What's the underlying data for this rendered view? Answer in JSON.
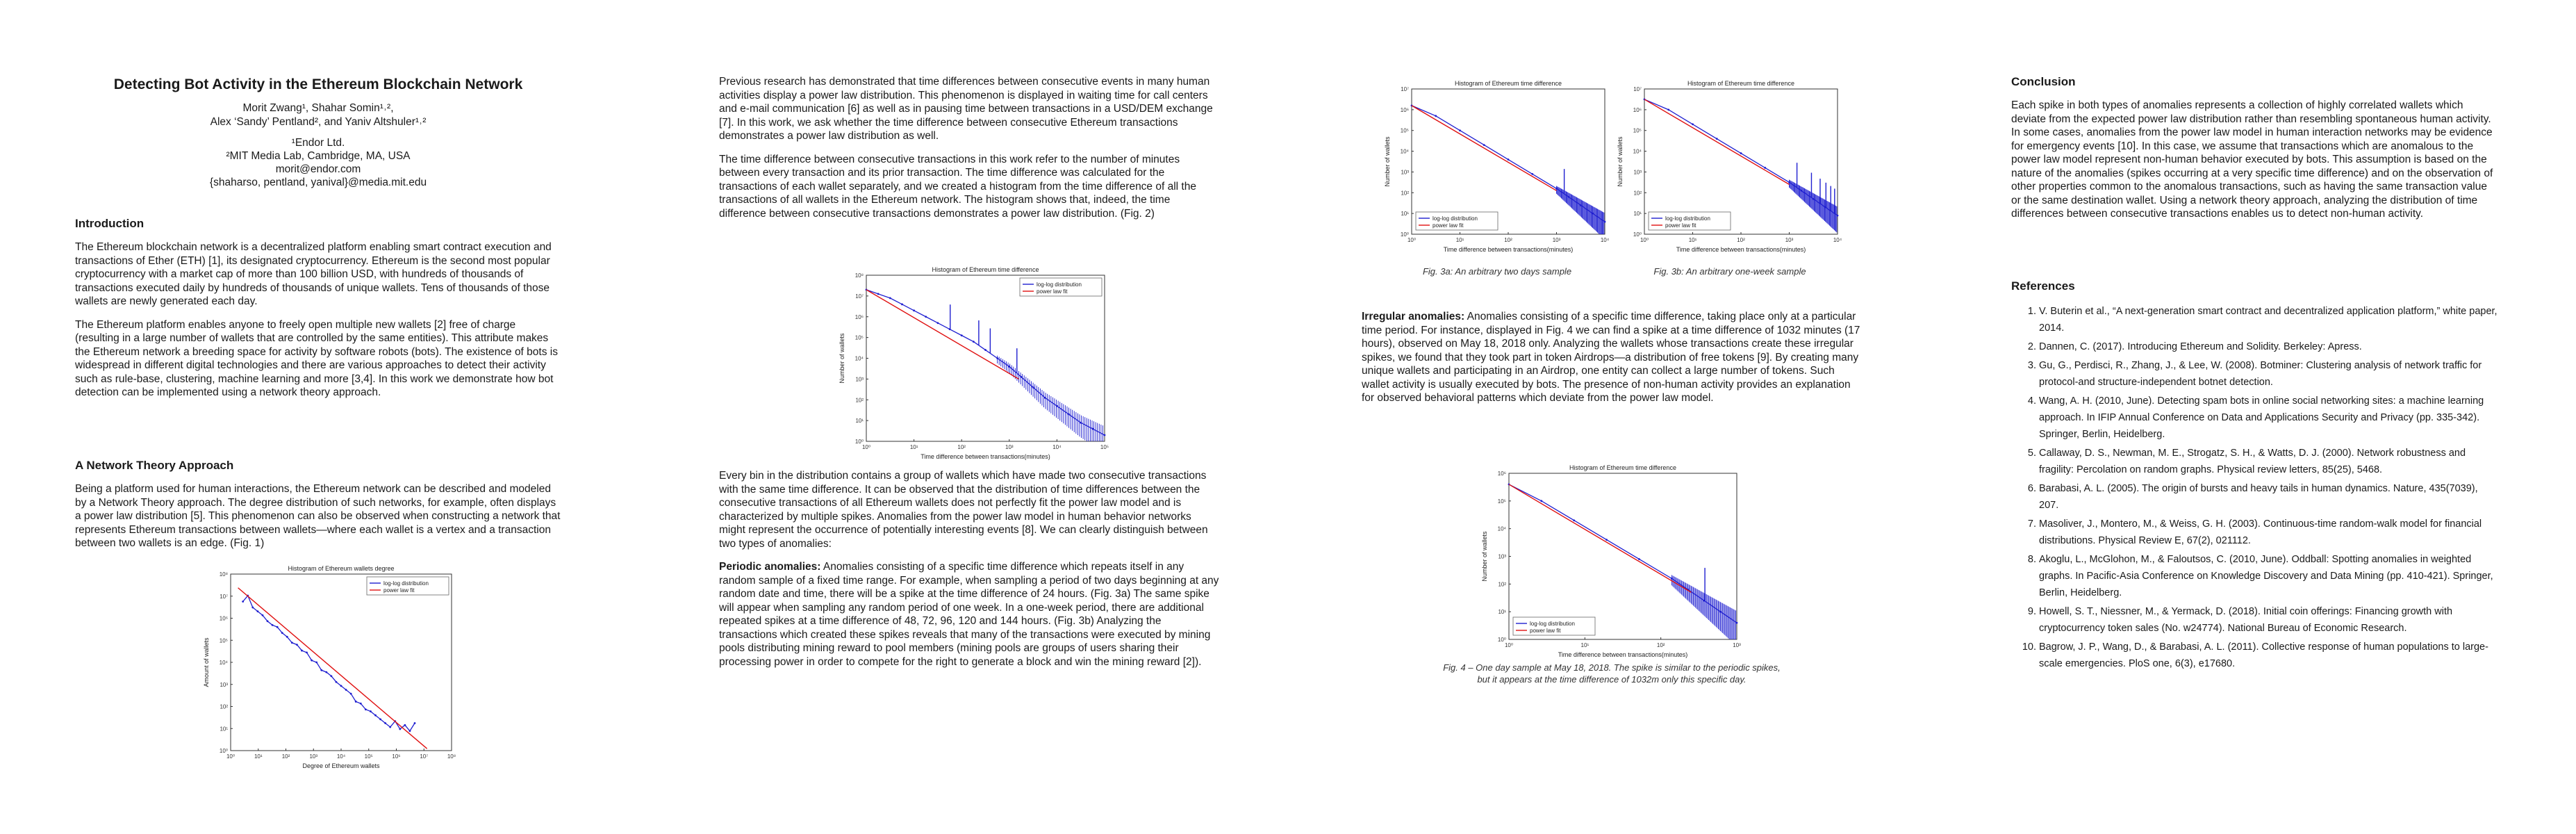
{
  "paper": {
    "title": "Detecting Bot Activity in the Ethereum Blockchain Network",
    "authors_line1": "Morit Zwang¹, Shahar Somin¹˒²,",
    "authors_line2": "Alex ‘Sandy’ Pentland², and Yaniv Altshuler¹˒²",
    "affil1": "¹Endor Ltd.",
    "affil2": "²MIT Media Lab, Cambridge, MA, USA",
    "email1": "morit@endor.com",
    "email2": "{shaharso, pentland, yanival}@media.mit.edu"
  },
  "sections": {
    "intro_heading": "Introduction",
    "intro_p1": "The Ethereum blockchain network is a decentralized platform enabling smart contract execution and transactions of Ether (ETH) [1], its designated cryptocurrency. Ethereum is the second most popular cryptocurrency with a market cap of more than 100 billion USD, with hundreds of thousands of transactions executed daily by hundreds of thousands of unique wallets. Tens of thousands of those wallets are newly generated each day.",
    "intro_p2": "The Ethereum platform enables anyone to freely open multiple new wallets [2] free of charge (resulting in a large number of wallets that are controlled by the same entities). This attribute makes the Ethereum network a breeding space for activity by software robots (bots). The existence of bots is widespread in different digital technologies and there are various approaches to detect their activity such as rule-base, clustering, machine learning and more [3,4]. In this work we demonstrate how bot detection can be implemented using a network theory approach.",
    "network_heading": "A Network Theory Approach",
    "network_p1": "Being a platform used for human interactions, the Ethereum network can be described and modeled by a Network Theory approach. The degree distribution of such networks, for example, often displays a power law distribution [5]. This phenomenon can also be observed when constructing a network that represents Ethereum transactions between wallets—where each wallet is a vertex and a transaction between two wallets is an edge. (Fig. 1)",
    "col2_p1": "Previous research has demonstrated that time differences between consecutive events in many human activities display a power law distribution. This phenomenon is displayed in waiting time for call centers and e-mail communication [6] as well as in pausing time between transactions in a USD/DEM exchange [7]. In this work, we ask whether the time difference between consecutive Ethereum transactions demonstrates a power law distribution as well.",
    "col2_p2": "The time difference between consecutive transactions in this work refer to the number of minutes between every transaction and its prior transaction. The time difference was calculated for the transactions of each wallet separately, and we created a histogram from the time difference of all the transactions of all wallets in the Ethereum network. The histogram shows that, indeed, the time difference between consecutive transactions demonstrates a power law distribution. (Fig. 2)",
    "col2_p3": "Every bin in the distribution contains a group of wallets which have made two consecutive transactions with the same time difference. It can be observed that the distribution of time differences between the consecutive transactions of all Ethereum wallets does not perfectly fit the power law model and is characterized by multiple spikes. Anomalies from the power law model in human behavior networks might represent the occurrence of potentially interesting events [8]. We can clearly distinguish between two types of anomalies:",
    "periodic_label": "Periodic anomalies:",
    "periodic_text": " Anomalies consisting of a specific time difference which repeats itself in any random sample of a fixed time range. For example, when sampling a period of two days beginning at any random date and time, there will be a spike at the time difference of 24 hours. (Fig. 3a) The same spike will appear when sampling any random period of one week. In a one-week period, there are additional repeated spikes at a time difference of 48, 72, 96, 120 and 144 hours. (Fig. 3b) Analyzing the transactions which created these spikes reveals that many of the transactions were executed by mining pools distributing mining reward to pool members (mining pools are groups of users sharing their processing power in order to compete for the right to generate a block and win the mining reward [2]).",
    "irregular_label": "Irregular anomalies:",
    "irregular_text": " Anomalies consisting of a specific time difference, taking place only at a particular time period. For instance, displayed in Fig. 4 we can find a spike at a time difference of 1032 minutes (17 hours), observed on May 18, 2018 only. Analyzing the wallets whose transactions create these irregular spikes, we found that they took part in token Airdrops—a distribution of free tokens [9]. By creating many unique wallets and participating in an Airdrop, one entity can collect a large number of tokens. Such wallet activity is usually executed by bots. The presence of non-human activity provides an explanation for observed behavioral patterns which deviate from the power law model.",
    "conclusion_heading": "Conclusion",
    "conclusion_p": "Each spike in both types of anomalies represents a collection of highly correlated wallets which deviate from the expected power law distribution rather than resembling spontaneous human activity. In some cases, anomalies from the power law model in human interaction networks may be evidence for emergency events [10]. In this case, we assume that transactions which are anomalous to the power law model represent non-human behavior executed by bots. This assumption is based on the nature of the anomalies (spikes occurring at a very specific time difference) and on the observation of other properties common to the anomalous transactions, such as having the same transaction value or the same destination wallet. Using a network theory approach, analyzing the distribution of time differences between consecutive transactions enables us to detect non-human activity.",
    "references_heading": "References"
  },
  "captions": {
    "fig3a": "Fig. 3a: An arbitrary two days sample",
    "fig3b": "Fig. 3b: An arbitrary one-week sample",
    "fig4_line1": "Fig. 4 – One day sample at May 18, 2018. The spike is similar to the periodic spikes,",
    "fig4_line2": "but it appears at the time difference of 1032m only this specific day."
  },
  "references": [
    "V. Buterin et al., “A next-generation smart contract and decentralized application platform,” white paper, 2014.",
    "Dannen, C. (2017). Introducing Ethereum and Solidity. Berkeley: Apress.",
    "Gu, G., Perdisci, R., Zhang, J., & Lee, W. (2008). Botminer: Clustering analysis of network traffic for protocol-and structure-independent botnet detection.",
    "Wang, A. H. (2010, June). Detecting spam bots in online social networking sites: a machine learning approach. In IFIP Annual Conference on Data and Applications Security and Privacy (pp. 335-342). Springer, Berlin, Heidelberg.",
    "Callaway, D. S., Newman, M. E., Strogatz, S. H., & Watts, D. J. (2000). Network robustness and fragility: Percolation on random graphs. Physical review letters, 85(25), 5468.",
    "Barabasi, A. L. (2005). The origin of bursts and heavy tails in human dynamics. Nature, 435(7039), 207.",
    "Masoliver, J., Montero, M., & Weiss, G. H. (2003). Continuous-time random-walk model for financial distributions. Physical Review E, 67(2), 021112.",
    "Akoglu, L., McGlohon, M., & Faloutsos, C. (2010, June). Oddball: Spotting anomalies in weighted graphs. In Pacific-Asia Conference on Knowledge Discovery and Data Mining (pp. 410-421). Springer, Berlin, Heidelberg.",
    "Howell, S. T., Niessner, M., & Yermack, D. (2018). Initial coin offerings: Financing growth with cryptocurrency token sales (No. w24774). National Bureau of Economic Research.",
    "Bagrow, J. P., Wang, D., & Barabasi, A. L. (2011). Collective response of human populations to large-scale emergencies. PloS one, 6(3), e17680."
  ],
  "chart_data": [
    {
      "id": "fig1",
      "type": "scatter",
      "title": "Histogram of Ethereum wallets degree",
      "xlabel": "Degree of Ethereum wallets",
      "ylabel": "Amount of wallets",
      "log_x": true,
      "log_y": true,
      "xlim": [
        0,
        9
      ],
      "ylim": [
        0,
        9
      ],
      "xticks": [
        "10⁰",
        "10¹",
        "10²",
        "10³",
        "10⁴",
        "10⁵",
        "10⁶",
        "10⁷",
        "10⁸"
      ],
      "yticks": [
        "10⁰",
        "10¹",
        "10²",
        "10³",
        "10⁴",
        "10⁵",
        "10⁶",
        "10⁷",
        "10⁸"
      ],
      "legend": [
        "log-log distribution",
        "power law fit"
      ],
      "legend_position": "top-right",
      "series": [
        {
          "name": "log-log distribution",
          "color": "#1f1fd0",
          "x": [
            0.5,
            0.7,
            0.9,
            1.1,
            1.3,
            1.5,
            1.7,
            1.9,
            2.1,
            2.3,
            2.5,
            2.7,
            2.9,
            3.1,
            3.3,
            3.5,
            3.7,
            3.9,
            4.1,
            4.3,
            4.5,
            4.7,
            4.9,
            5.1,
            5.3,
            5.5,
            5.7,
            5.9,
            6.1,
            6.3,
            6.5,
            6.7,
            6.9,
            7.1,
            7.3,
            7.5
          ],
          "y": [
            7.6,
            7.9,
            7.3,
            7.1,
            6.9,
            6.6,
            6.4,
            6.3,
            6.0,
            5.8,
            5.5,
            5.4,
            5.1,
            5.0,
            4.6,
            4.5,
            4.1,
            4.0,
            3.8,
            3.5,
            3.3,
            3.1,
            2.9,
            2.5,
            2.4,
            2.1,
            2.0,
            1.8,
            1.6,
            1.4,
            1.2,
            1.5,
            1.1,
            1.3,
            1.0,
            1.4
          ]
        },
        {
          "name": "power law fit",
          "color": "#e01010",
          "x": [
            0.3,
            8.0
          ],
          "y": [
            8.3,
            0.1
          ]
        }
      ]
    },
    {
      "id": "fig2",
      "type": "scatter",
      "title": "Histogram of Ethereum time difference",
      "xlabel": "Time difference between transactions(minutes)",
      "ylabel": "Number of wallets",
      "log_x": true,
      "log_y": true,
      "xlim": [
        0,
        5
      ],
      "ylim": [
        0,
        8
      ],
      "xticks": [
        "10⁰",
        "10¹",
        "10²",
        "10³",
        "10⁴",
        "10⁵"
      ],
      "yticks": [
        "10⁰",
        "10¹",
        "10²",
        "10³",
        "10⁴",
        "10⁵",
        "10⁶",
        "10⁷",
        "10⁸"
      ],
      "legend": [
        "log-log distribution",
        "power law fit"
      ],
      "legend_position": "top-right",
      "spikes_x": [
        1.76,
        2.36,
        2.6,
        3.16
      ],
      "series": [
        {
          "name": "log-log distribution",
          "color": "#1f1fd0",
          "x": [
            0.0,
            0.25,
            0.5,
            0.75,
            1.0,
            1.25,
            1.5,
            1.75,
            2.0,
            2.25,
            2.5,
            2.75,
            3.0,
            3.25,
            3.5,
            3.75,
            4.0,
            4.25,
            4.5,
            4.75,
            5.0
          ],
          "y": [
            7.3,
            7.1,
            6.9,
            6.6,
            6.3,
            6.0,
            5.7,
            5.4,
            5.1,
            4.8,
            4.4,
            4.0,
            3.6,
            3.1,
            2.6,
            2.1,
            1.7,
            1.3,
            0.9,
            0.6,
            0.3
          ]
        },
        {
          "name": "power law fit",
          "color": "#e01010",
          "x": [
            0.0,
            3.2
          ],
          "y": [
            7.3,
            3.0
          ]
        }
      ]
    },
    {
      "id": "fig3a",
      "type": "scatter",
      "title": "Histogram of Ethereum time difference",
      "xlabel": "Time difference between transactions(minutes)",
      "ylabel": "Number of wallets",
      "log_x": true,
      "log_y": true,
      "xlim": [
        0,
        4
      ],
      "ylim": [
        0,
        7
      ],
      "xticks": [
        "10⁰",
        "10¹",
        "10²",
        "10³",
        "10⁴"
      ],
      "yticks": [
        "10⁰",
        "10¹",
        "10²",
        "10³",
        "10⁴",
        "10⁵",
        "10⁶",
        "10⁷"
      ],
      "legend": [
        "log-log distribution",
        "power law fit"
      ],
      "legend_position": "bottom-left",
      "spikes_x": [
        3.16
      ],
      "series": [
        {
          "name": "log-log distribution",
          "color": "#1f1fd0",
          "x": [
            0.0,
            0.5,
            1.0,
            1.5,
            2.0,
            2.5,
            3.0,
            3.25,
            3.5,
            3.75,
            4.0
          ],
          "y": [
            6.2,
            5.7,
            5.0,
            4.3,
            3.6,
            2.9,
            2.2,
            1.8,
            1.4,
            1.0,
            0.6
          ]
        },
        {
          "name": "power law fit",
          "color": "#e01010",
          "x": [
            0.0,
            3.0
          ],
          "y": [
            6.2,
            2.1
          ]
        }
      ]
    },
    {
      "id": "fig3b",
      "type": "scatter",
      "title": "Histogram of Ethereum time difference",
      "xlabel": "Time difference between transactions(minutes)",
      "ylabel": "Number of wallets",
      "log_x": true,
      "log_y": true,
      "xlim": [
        0,
        4
      ],
      "ylim": [
        0,
        7
      ],
      "xticks": [
        "10⁰",
        "10¹",
        "10²",
        "10³",
        "10⁴"
      ],
      "yticks": [
        "10⁰",
        "10¹",
        "10²",
        "10³",
        "10⁴",
        "10⁵",
        "10⁶",
        "10⁷"
      ],
      "legend": [
        "log-log distribution",
        "power law fit"
      ],
      "legend_position": "bottom-left",
      "spikes_x": [
        3.16,
        3.46,
        3.64,
        3.76,
        3.86,
        3.94
      ],
      "series": [
        {
          "name": "log-log distribution",
          "color": "#1f1fd0",
          "x": [
            0.0,
            0.5,
            1.0,
            1.5,
            2.0,
            2.5,
            3.0,
            3.25,
            3.5,
            3.75,
            4.0
          ],
          "y": [
            6.5,
            6.0,
            5.3,
            4.6,
            3.9,
            3.2,
            2.5,
            2.1,
            1.7,
            1.3,
            0.9
          ]
        },
        {
          "name": "power law fit",
          "color": "#e01010",
          "x": [
            0.0,
            3.0
          ],
          "y": [
            6.5,
            2.4
          ]
        }
      ]
    },
    {
      "id": "fig4",
      "type": "scatter",
      "title": "Histogram of Ethereum time difference",
      "xlabel": "Time difference between transactions(minutes)",
      "ylabel": "Number of wallets",
      "log_x": true,
      "log_y": true,
      "xlim": [
        0,
        3.5
      ],
      "ylim": [
        0,
        6
      ],
      "xticks": [
        "10⁰",
        "10¹",
        "10²",
        "10³"
      ],
      "yticks": [
        "10⁰",
        "10¹",
        "10²",
        "10³",
        "10⁴",
        "10⁵",
        "10⁶"
      ],
      "legend": [
        "log-log distribution",
        "power law fit"
      ],
      "legend_position": "bottom-left",
      "spikes_x": [
        3.01
      ],
      "series": [
        {
          "name": "log-log distribution",
          "color": "#1f1fd0",
          "x": [
            0.0,
            0.5,
            1.0,
            1.5,
            2.0,
            2.5,
            2.75,
            3.0,
            3.25,
            3.5
          ],
          "y": [
            5.6,
            5.0,
            4.3,
            3.6,
            2.9,
            2.2,
            1.8,
            1.4,
            1.0,
            0.6
          ]
        },
        {
          "name": "power law fit",
          "color": "#e01010",
          "x": [
            0.0,
            2.8
          ],
          "y": [
            5.6,
            1.7
          ]
        }
      ]
    }
  ]
}
